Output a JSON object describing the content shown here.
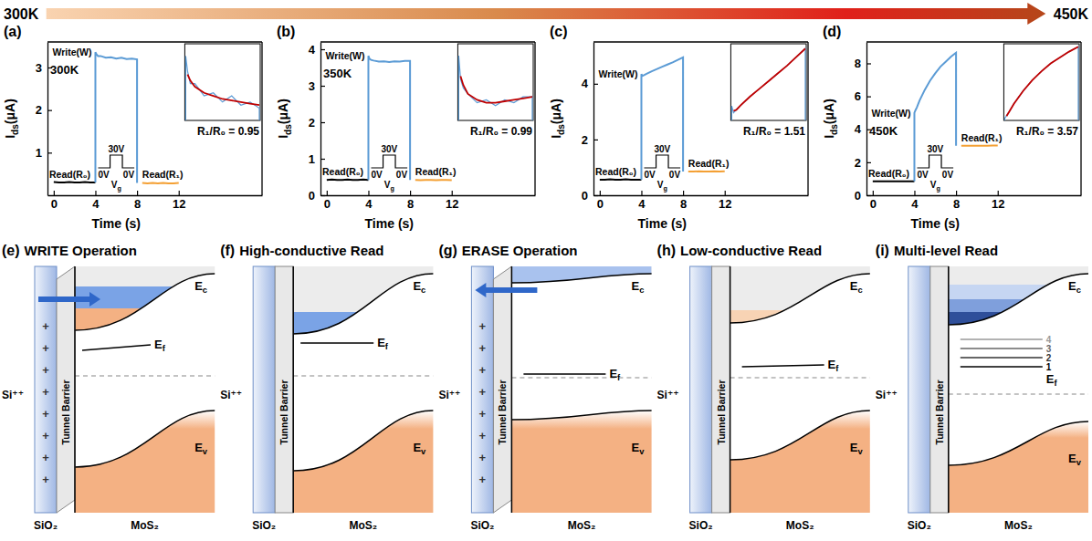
{
  "header": {
    "start": "300K",
    "end": "450K"
  },
  "chart_data": [
    {
      "type": "line",
      "title": "(a)",
      "x_label": "Time (s)",
      "y_label": "Ids(μA)",
      "xlim": [
        -0.6,
        20
      ],
      "xticks": [
        0,
        4,
        8,
        12
      ],
      "ylim": [
        0,
        3.6
      ],
      "yticks": [
        1,
        2,
        3
      ],
      "x": [
        0,
        0.5,
        1,
        1.5,
        2,
        2.5,
        3,
        3.5,
        4,
        4,
        4.1,
        4.25,
        4.5,
        5,
        5.5,
        6,
        6.5,
        7,
        7.5,
        8,
        8,
        8.5,
        9,
        9.5,
        10,
        10.5,
        11,
        11.5,
        12
      ],
      "series": [
        {
          "name": "Read(R₀)",
          "color": "#000000",
          "values": [
            0.31,
            0.3,
            0.3,
            0.31,
            0.3,
            0.3,
            0.31,
            0.3,
            0.3,
            null,
            null,
            null,
            null,
            null,
            null,
            null,
            null,
            null,
            null,
            null,
            null,
            null,
            null,
            null,
            null,
            null,
            null,
            null,
            null
          ]
        },
        {
          "name": "Write(W)",
          "color": "#5b9bd5",
          "values": [
            null,
            null,
            null,
            null,
            null,
            null,
            null,
            null,
            0.3,
            3.36,
            3.31,
            3.27,
            3.27,
            3.23,
            3.24,
            3.21,
            3.23,
            3.2,
            3.21,
            3.19,
            0.29,
            null,
            null,
            null,
            null,
            null,
            null,
            null,
            null
          ]
        },
        {
          "name": "Read(R₁)",
          "color": "#f4a034",
          "values": [
            null,
            null,
            null,
            null,
            null,
            null,
            null,
            null,
            null,
            null,
            null,
            null,
            null,
            null,
            null,
            null,
            null,
            null,
            null,
            null,
            null,
            0.29,
            0.28,
            0.29,
            0.28,
            0.29,
            0.28,
            0.28,
            0.29
          ]
        }
      ],
      "annotations": {
        "temperature": "300K",
        "ratio": "R₁/R₀ = 0.95",
        "pulse_high": "30V",
        "pulse_low_before": "0V",
        "pulse_low_after": "0V",
        "pulse_signal": "Vg"
      },
      "inset": {
        "type": "line",
        "tick_labels": false,
        "x": [
          4,
          4,
          4.1,
          4.25,
          4.5,
          5,
          5.5,
          6,
          6.5,
          7,
          7.5,
          8,
          8
        ],
        "xlim": [
          3.95,
          8.05
        ],
        "ylim": [
          3.15,
          3.4
        ],
        "series": [
          {
            "color": "#5b9bd5",
            "values": [
              0.3,
              3.36,
              3.31,
              3.27,
              3.27,
              3.23,
              3.24,
              3.21,
              3.23,
              3.2,
              3.21,
              3.19,
              0.29
            ]
          },
          {
            "color": "#c00000",
            "values": [
              null,
              null,
              3.3,
              3.28,
              3.26,
              3.24,
              3.23,
              3.22,
              3.215,
              3.21,
              3.205,
              3.2,
              null
            ]
          }
        ]
      }
    },
    {
      "type": "line",
      "title": "(b)",
      "x_label": "Time (s)",
      "y_label": "Ids(μA)",
      "xlim": [
        -0.6,
        20
      ],
      "xticks": [
        0,
        4,
        8,
        12
      ],
      "ylim": [
        0,
        4.2
      ],
      "yticks": [
        0,
        1,
        2,
        3,
        4
      ],
      "x": [
        0,
        0.5,
        1,
        1.5,
        2,
        2.5,
        3,
        3.5,
        4,
        4,
        4.1,
        4.25,
        4.5,
        5,
        5.5,
        6,
        6.5,
        7,
        7.5,
        8,
        8,
        8.5,
        9,
        9.5,
        10,
        10.5,
        11,
        11.5,
        12
      ],
      "series": [
        {
          "name": "Read(R₀)",
          "color": "#000000",
          "values": [
            0.42,
            0.43,
            0.42,
            0.42,
            0.43,
            0.42,
            0.42,
            0.43,
            0.42,
            null,
            null,
            null,
            null,
            null,
            null,
            null,
            null,
            null,
            null,
            null,
            null,
            null,
            null,
            null,
            null,
            null,
            null,
            null,
            null
          ]
        },
        {
          "name": "Write(W)",
          "color": "#5b9bd5",
          "values": [
            null,
            null,
            null,
            null,
            null,
            null,
            null,
            null,
            0.42,
            3.82,
            3.74,
            3.71,
            3.69,
            3.66,
            3.67,
            3.65,
            3.67,
            3.66,
            3.68,
            3.68,
            0.42,
            null,
            null,
            null,
            null,
            null,
            null,
            null,
            null
          ]
        },
        {
          "name": "Read(R₁)",
          "color": "#f4a034",
          "values": [
            null,
            null,
            null,
            null,
            null,
            null,
            null,
            null,
            null,
            null,
            null,
            null,
            null,
            null,
            null,
            null,
            null,
            null,
            null,
            null,
            null,
            0.42,
            0.41,
            0.42,
            0.42,
            0.41,
            0.42,
            0.42,
            0.41
          ]
        }
      ],
      "annotations": {
        "temperature": "350K",
        "ratio": "R₁/R₀ = 0.99",
        "pulse_high": "30V",
        "pulse_low_before": "0V",
        "pulse_low_after": "0V",
        "pulse_signal": "Vg"
      },
      "inset": {
        "type": "line",
        "tick_labels": false,
        "x": [
          4,
          4,
          4.1,
          4.25,
          4.5,
          5,
          5.5,
          6,
          6.5,
          7,
          7.5,
          8,
          8
        ],
        "xlim": [
          3.95,
          8.05
        ],
        "ylim": [
          3.6,
          3.86
        ],
        "series": [
          {
            "color": "#5b9bd5",
            "values": [
              0.42,
              3.82,
              3.74,
              3.71,
              3.69,
              3.66,
              3.67,
              3.65,
              3.67,
              3.66,
              3.68,
              3.68,
              0.42
            ]
          },
          {
            "color": "#c00000",
            "values": [
              null,
              null,
              3.75,
              3.72,
              3.69,
              3.67,
              3.66,
              3.66,
              3.665,
              3.67,
              3.675,
              3.68,
              null
            ]
          }
        ]
      }
    },
    {
      "type": "line",
      "title": "(c)",
      "x_label": "Time (s)",
      "y_label": "Ids(μA)",
      "xlim": [
        -0.6,
        20
      ],
      "xticks": [
        0,
        4,
        8,
        12
      ],
      "ylim": [
        0,
        5.5
      ],
      "yticks": [
        0,
        2,
        4
      ],
      "x": [
        0,
        0.5,
        1,
        1.5,
        2,
        2.5,
        3,
        3.5,
        4,
        4,
        4.1,
        4.25,
        4.5,
        5,
        5.5,
        6,
        6.5,
        7,
        7.5,
        8,
        8,
        8.5,
        9,
        9.5,
        10,
        10.5,
        11,
        11.5,
        12
      ],
      "series": [
        {
          "name": "Read(R₀)",
          "color": "#000000",
          "values": [
            0.56,
            0.56,
            0.57,
            0.56,
            0.56,
            0.57,
            0.56,
            0.56,
            0.56,
            null,
            null,
            null,
            null,
            null,
            null,
            null,
            null,
            null,
            null,
            null,
            null,
            null,
            null,
            null,
            null,
            null,
            null,
            null,
            null
          ]
        },
        {
          "name": "Write(W)",
          "color": "#5b9bd5",
          "values": [
            null,
            null,
            null,
            null,
            null,
            null,
            null,
            null,
            0.56,
            4.35,
            4.28,
            4.31,
            4.36,
            4.45,
            4.53,
            4.61,
            4.69,
            4.77,
            4.86,
            4.95,
            0.85,
            null,
            null,
            null,
            null,
            null,
            null,
            null,
            null
          ]
        },
        {
          "name": "Read(R₁)",
          "color": "#f4a034",
          "values": [
            null,
            null,
            null,
            null,
            null,
            null,
            null,
            null,
            null,
            null,
            null,
            null,
            null,
            null,
            null,
            null,
            null,
            null,
            null,
            null,
            null,
            0.85,
            0.85,
            0.86,
            0.85,
            0.85,
            0.86,
            0.85,
            0.86
          ]
        }
      ],
      "annotations": {
        "ratio": "R₁/R₀ = 1.51",
        "pulse_high": "30V",
        "pulse_low_before": "0V",
        "pulse_low_after": "0V",
        "pulse_signal": "Vg"
      },
      "inset": {
        "type": "line",
        "tick_labels": false,
        "x": [
          4,
          4,
          4.1,
          4.25,
          4.5,
          5,
          5.5,
          6,
          6.5,
          7,
          7.5,
          8,
          8
        ],
        "xlim": [
          3.95,
          8.05
        ],
        "ylim": [
          4.2,
          5.0
        ],
        "series": [
          {
            "color": "#5b9bd5",
            "values": [
              0.56,
              4.35,
              4.28,
              4.31,
              4.36,
              4.45,
              4.53,
              4.61,
              4.69,
              4.77,
              4.86,
              4.95,
              0.85
            ]
          },
          {
            "color": "#c00000",
            "values": [
              null,
              null,
              4.3,
              4.31,
              4.36,
              4.45,
              4.53,
              4.61,
              4.69,
              4.77,
              4.86,
              4.95,
              null
            ]
          }
        ]
      }
    },
    {
      "type": "line",
      "title": "(d)",
      "x_label": "Time (s)",
      "y_label": "Ids(μA)",
      "xlim": [
        -0.6,
        20
      ],
      "xticks": [
        0,
        4,
        8,
        12
      ],
      "ylim": [
        0,
        9.3
      ],
      "yticks": [
        0,
        2,
        4,
        6,
        8
      ],
      "x": [
        0,
        0.5,
        1,
        1.5,
        2,
        2.5,
        3,
        3.5,
        4,
        4,
        4.1,
        4.25,
        4.5,
        5,
        5.5,
        6,
        6.5,
        7,
        7.5,
        8,
        8,
        8.5,
        9,
        9.5,
        10,
        10.5,
        11,
        11.5,
        12
      ],
      "series": [
        {
          "name": "Read(R₀)",
          "color": "#000000",
          "values": [
            0.84,
            0.84,
            0.85,
            0.84,
            0.84,
            0.85,
            0.84,
            0.84,
            0.84,
            null,
            null,
            null,
            null,
            null,
            null,
            null,
            null,
            null,
            null,
            null,
            null,
            null,
            null,
            null,
            null,
            null,
            null,
            null,
            null
          ]
        },
        {
          "name": "Write(W)",
          "color": "#5b9bd5",
          "values": [
            null,
            null,
            null,
            null,
            null,
            null,
            null,
            null,
            0.84,
            5.0,
            5.15,
            5.35,
            5.75,
            6.4,
            6.95,
            7.4,
            7.8,
            8.1,
            8.4,
            8.65,
            3.0,
            null,
            null,
            null,
            null,
            null,
            null,
            null,
            null
          ]
        },
        {
          "name": "Read(R₁)",
          "color": "#f4a034",
          "values": [
            null,
            null,
            null,
            null,
            null,
            null,
            null,
            null,
            null,
            null,
            null,
            null,
            null,
            null,
            null,
            null,
            null,
            null,
            null,
            null,
            null,
            3.0,
            3.0,
            3.01,
            3.0,
            3.01,
            3.01,
            3.02,
            3.02
          ]
        }
      ],
      "annotations": {
        "temperature": "450K",
        "ratio": "R₁/R₀ = 3.57",
        "pulse_high": "30V",
        "pulse_low_before": "0V",
        "pulse_low_after": "0V",
        "pulse_signal": "Vg"
      },
      "inset": {
        "type": "line",
        "tick_labels": false,
        "x": [
          4,
          4,
          4.1,
          4.25,
          4.5,
          5,
          5.5,
          6,
          6.5,
          7,
          7.5,
          8,
          8
        ],
        "xlim": [
          3.95,
          8.05
        ],
        "ylim": [
          4.9,
          8.8
        ],
        "series": [
          {
            "color": "#5b9bd5",
            "values": [
              0.84,
              5.0,
              5.15,
              5.35,
              5.75,
              6.4,
              6.95,
              7.4,
              7.8,
              8.1,
              8.4,
              8.65,
              3.0
            ]
          },
          {
            "color": "#c00000",
            "values": [
              null,
              null,
              5.12,
              5.35,
              5.75,
              6.4,
              6.95,
              7.4,
              7.8,
              8.1,
              8.4,
              8.65,
              null
            ]
          }
        ]
      }
    }
  ],
  "diagrams": [
    {
      "letter": "(e)",
      "title": "WRITE Operation",
      "gate": "Si⁺⁺",
      "oxide": "SiO₂",
      "barrier": "Tunnel Barrier",
      "channel": "MoS₂",
      "conduction_band": "Ec",
      "fermi_level": "Ef",
      "valence_band": "Ev",
      "charge": "+",
      "arrow": "right"
    },
    {
      "letter": "(f)",
      "title": "High-conductive Read",
      "gate": "Si⁺⁺",
      "oxide": "SiO₂",
      "barrier": "Tunnel Barrier",
      "channel": "MoS₂",
      "conduction_band": "Ec",
      "fermi_level": "Ef",
      "valence_band": "Ev"
    },
    {
      "letter": "(g)",
      "title": "ERASE Operation",
      "gate": "Si⁺⁺",
      "oxide": "SiO₂",
      "barrier": "Tunnel Barrier",
      "channel": "MoS₂",
      "conduction_band": "Ec",
      "fermi_level": "Ef",
      "valence_band": "Ev",
      "charge": "+",
      "arrow": "left"
    },
    {
      "letter": "(h)",
      "title": "Low-conductive Read",
      "gate": "Si⁺⁺",
      "oxide": "SiO₂",
      "barrier": "Tunnel Barrier",
      "channel": "MoS₂",
      "conduction_band": "Ec",
      "fermi_level": "Ef",
      "valence_band": "Ev"
    },
    {
      "letter": "(i)",
      "title": "Multi-level Read",
      "gate": "Si⁺⁺",
      "oxide": "SiO₂",
      "barrier": "Tunnel Barrier",
      "channel": "MoS₂",
      "conduction_band": "Ec",
      "fermi_level": "Ef",
      "valence_band": "Ev",
      "levels": [
        1,
        2,
        3,
        4
      ]
    }
  ]
}
